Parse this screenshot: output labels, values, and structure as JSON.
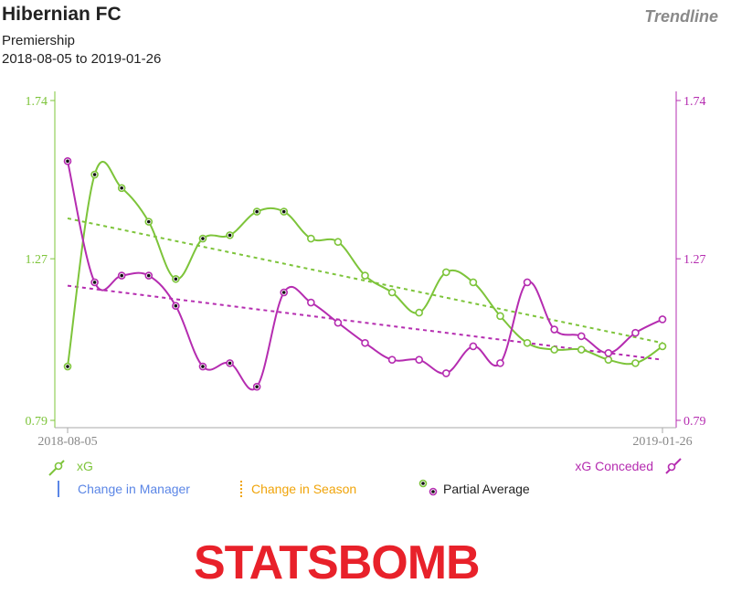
{
  "header": {
    "team": "Hibernian FC",
    "competition": "Premiership",
    "date_range": "2018-08-05 to 2019-01-26",
    "view_label": "Trendline"
  },
  "colors": {
    "xg": "#7dc43a",
    "xg_conceded": "#b52cb0",
    "manager": "#5b86e6",
    "season": "#f0a40a",
    "axis": "#aaaaaa"
  },
  "legend": {
    "xg": "xG",
    "xg_conceded": "xG Conceded",
    "manager": "Change in Manager",
    "season": "Change in Season",
    "partial": "Partial Average"
  },
  "logo": {
    "text": "STATSBOMB"
  },
  "chart_data": {
    "type": "line",
    "title": "Hibernian FC",
    "x_ticks": [
      "2018-08-05",
      "2019-01-26"
    ],
    "y_ticks": [
      0.79,
      1.27,
      1.74
    ],
    "ylim": [
      0.79,
      1.74
    ],
    "series": [
      {
        "name": "xG",
        "axis": "left",
        "values": [
          0.95,
          1.52,
          1.48,
          1.38,
          1.21,
          1.33,
          1.34,
          1.41,
          1.41,
          1.33,
          1.32,
          1.22,
          1.17,
          1.11,
          1.23,
          1.2,
          1.1,
          1.02,
          1.0,
          1.0,
          0.97,
          0.96,
          1.01
        ],
        "partial": [
          true,
          true,
          true,
          true,
          true,
          true,
          true,
          true,
          true,
          false,
          false,
          false,
          false,
          false,
          false,
          false,
          false,
          false,
          false,
          false,
          false,
          false,
          false
        ]
      },
      {
        "name": "xG Conceded",
        "axis": "right",
        "values": [
          1.56,
          1.2,
          1.22,
          1.22,
          1.13,
          0.95,
          0.96,
          0.89,
          1.17,
          1.14,
          1.08,
          1.02,
          0.97,
          0.97,
          0.93,
          1.01,
          0.96,
          1.2,
          1.06,
          1.04,
          0.99,
          1.05,
          1.09
        ],
        "partial": [
          true,
          true,
          true,
          true,
          true,
          true,
          true,
          true,
          true,
          false,
          false,
          false,
          false,
          false,
          false,
          false,
          false,
          false,
          false,
          false,
          false,
          false,
          false
        ]
      }
    ],
    "trendlines": [
      {
        "series": "xG",
        "start": 1.39,
        "end": 1.02
      },
      {
        "series": "xG Conceded",
        "start": 1.19,
        "end": 0.97
      }
    ],
    "grid": false
  }
}
